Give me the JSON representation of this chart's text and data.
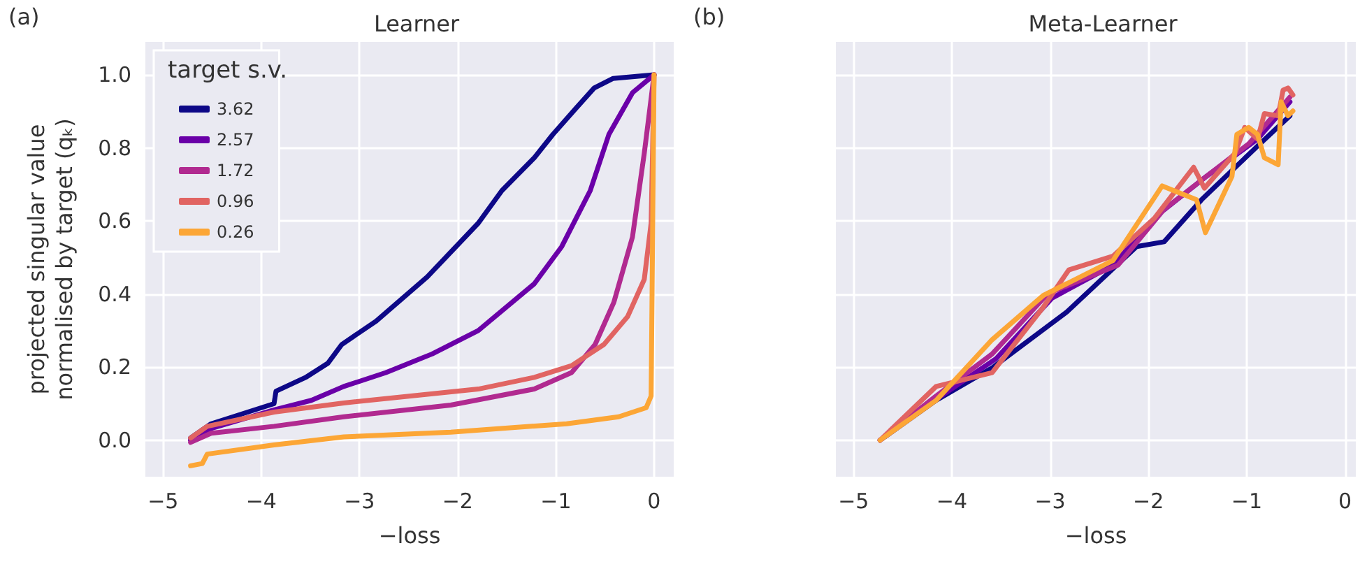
{
  "chart_data": [
    {
      "type": "line",
      "title": "Learner",
      "xlabel": "−loss",
      "ylabel": "projected singular value\nnormalised by target (qₖ)",
      "annotations": [
        "(a)"
      ],
      "legend": "top left",
      "legend_title": "target s.v.",
      "grid": true,
      "marker": "none",
      "xlim": [
        -5.18,
        0.2
      ],
      "ylim": [
        -0.1,
        1.09
      ],
      "xticks": [
        {
          "value": -5,
          "label": "−5"
        },
        {
          "value": -4,
          "label": "−4"
        },
        {
          "value": -3,
          "label": "−3"
        },
        {
          "value": -2,
          "label": "−2"
        },
        {
          "value": -1,
          "label": "−1"
        },
        0
      ],
      "yticks": [
        {
          "value": 0,
          "label": "0.0"
        },
        0.2,
        0.4,
        0.6,
        0.8,
        {
          "value": 1,
          "label": "1.0"
        }
      ],
      "series": [
        {
          "name": "3.62",
          "color": "#0d0887",
          "x": [
            -4.72,
            -4.51,
            -3.87,
            -3.85,
            -3.54,
            -3.32,
            -3.18,
            -2.83,
            -2.31,
            -1.79,
            -1.55,
            -1.22,
            -1.03,
            -0.8,
            -0.61,
            -0.42,
            0
          ],
          "values": [
            0.006,
            0.045,
            0.1,
            0.134,
            0.173,
            0.211,
            0.262,
            0.326,
            0.447,
            0.594,
            0.683,
            0.773,
            0.837,
            0.907,
            0.964,
            0.99,
            1.0
          ]
        },
        {
          "name": "2.57",
          "color": "#6a00a8",
          "x": [
            -4.72,
            -4.51,
            -3.87,
            -3.49,
            -3.16,
            -2.73,
            -2.26,
            -1.79,
            -1.22,
            -0.94,
            -0.65,
            -0.46,
            -0.22,
            0
          ],
          "values": [
            0,
            0.032,
            0.083,
            0.109,
            0.147,
            0.185,
            0.236,
            0.3,
            0.428,
            0.53,
            0.683,
            0.837,
            0.951,
            1.0
          ]
        },
        {
          "name": "1.72",
          "color": "#b12a90",
          "x": [
            -4.72,
            -4.51,
            -3.87,
            -3.16,
            -2.07,
            -1.22,
            -0.84,
            -0.6,
            -0.41,
            -0.22,
            -0.1,
            0
          ],
          "values": [
            -0.006,
            0.019,
            0.038,
            0.064,
            0.096,
            0.14,
            0.185,
            0.262,
            0.377,
            0.556,
            0.785,
            1.0
          ]
        },
        {
          "name": "0.96",
          "color": "#e16462",
          "x": [
            -4.72,
            -4.55,
            -3.87,
            -3.16,
            -1.79,
            -1.22,
            -0.84,
            -0.51,
            -0.27,
            -0.1,
            -0.03,
            0
          ],
          "values": [
            0.006,
            0.038,
            0.077,
            0.102,
            0.14,
            0.172,
            0.204,
            0.262,
            0.338,
            0.44,
            0.594,
            1.0
          ]
        },
        {
          "name": "0.26",
          "color": "#fca636",
          "x": [
            -4.72,
            -4.6,
            -4.55,
            -3.87,
            -3.16,
            -2.07,
            -0.89,
            -0.36,
            -0.08,
            -0.03,
            0
          ],
          "values": [
            -0.07,
            -0.064,
            -0.038,
            -0.013,
            0.009,
            0.022,
            0.045,
            0.064,
            0.089,
            0.121,
            1.0
          ]
        }
      ]
    },
    {
      "type": "line",
      "title": "Meta-Learner",
      "xlabel": "−loss",
      "annotations": [
        "(b)"
      ],
      "grid": true,
      "marker": "none",
      "tick_labels": "x",
      "xlim": [
        -5.18,
        0.11
      ],
      "ylim": [
        -0.1,
        1.09
      ],
      "xticks": [
        {
          "value": -5,
          "label": "−5"
        },
        {
          "value": -4,
          "label": "−4"
        },
        {
          "value": -3,
          "label": "−3"
        },
        {
          "value": -2,
          "label": "−2"
        },
        {
          "value": -1,
          "label": "−1"
        },
        0
      ],
      "yticks": [
        {
          "value": 0,
          "label": null
        },
        {
          "value": 0.2,
          "label": null
        },
        {
          "value": 0.4,
          "label": null
        },
        {
          "value": 0.6,
          "label": null
        },
        {
          "value": 0.8,
          "label": null
        },
        {
          "value": 1,
          "label": null
        }
      ],
      "series": [
        {
          "color": "#0d0887",
          "x": [
            -4.73,
            -4.16,
            -3.59,
            -2.83,
            -2.12,
            -1.84,
            -1.46,
            -0.89,
            -0.56
          ],
          "values": [
            0,
            0.109,
            0.198,
            0.351,
            0.53,
            0.543,
            0.658,
            0.805,
            0.888
          ]
        },
        {
          "color": "#6a00a8",
          "x": [
            -4.73,
            -4.11,
            -3.55,
            -2.98,
            -2.36,
            -1.89,
            -1.41,
            -0.89,
            -0.56
          ],
          "values": [
            0,
            0.121,
            0.223,
            0.389,
            0.479,
            0.62,
            0.722,
            0.824,
            0.926
          ]
        },
        {
          "color": "#b12a90",
          "x": [
            -4.73,
            -4.16,
            -3.59,
            -3.02,
            -2.31,
            -1.84,
            -1.41,
            -0.98,
            -0.56
          ],
          "values": [
            0,
            0.121,
            0.236,
            0.402,
            0.479,
            0.632,
            0.722,
            0.811,
            0.939
          ]
        },
        {
          "color": "#e16462",
          "x": [
            -4.73,
            -4.16,
            -3.59,
            -3.07,
            -2.81,
            -2.36,
            -1.94,
            -1.54,
            -1.43,
            -1.12,
            -1.02,
            -0.89,
            -0.82,
            -0.68,
            -0.63,
            -0.58,
            -0.53
          ],
          "values": [
            0,
            0.147,
            0.185,
            0.364,
            0.466,
            0.504,
            0.607,
            0.747,
            0.69,
            0.785,
            0.856,
            0.824,
            0.894,
            0.888,
            0.958,
            0.964,
            0.945
          ]
        },
        {
          "color": "#fca636",
          "x": [
            -4.73,
            -4.16,
            -3.59,
            -3.07,
            -2.36,
            -1.86,
            -1.51,
            -1.42,
            -1.15,
            -1.1,
            -0.98,
            -0.89,
            -0.82,
            -0.68,
            -0.65,
            -0.58,
            -0.53
          ],
          "values": [
            0,
            0.109,
            0.275,
            0.396,
            0.492,
            0.696,
            0.658,
            0.568,
            0.722,
            0.837,
            0.856,
            0.837,
            0.773,
            0.754,
            0.926,
            0.888,
            0.901
          ]
        }
      ]
    }
  ]
}
